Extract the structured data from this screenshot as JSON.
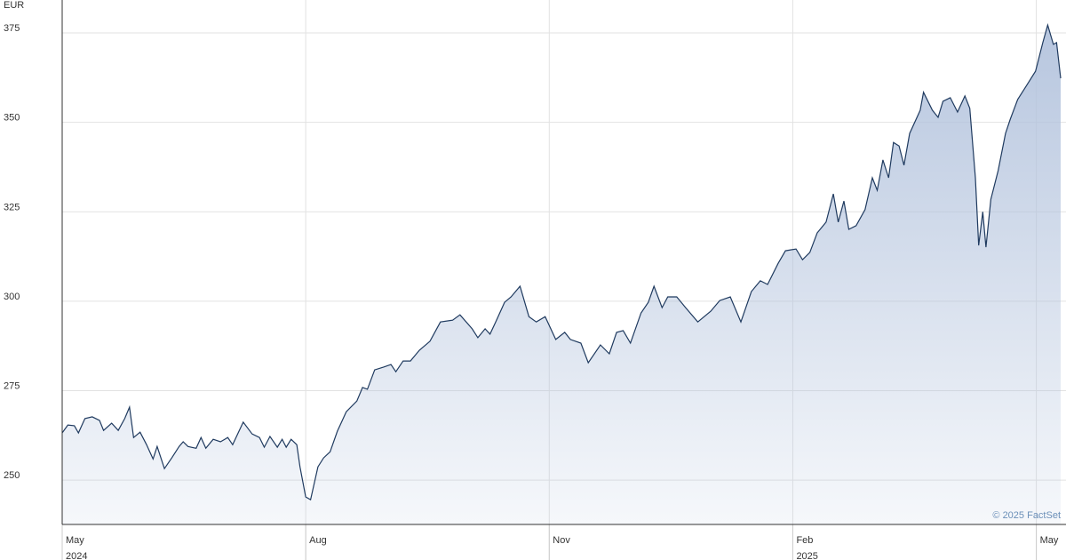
{
  "chart_data": {
    "type": "area",
    "unit": "EUR",
    "credit": "© 2025 FactSet",
    "color": "#1f3a5f",
    "fill": "#b9c8e0",
    "grid": true,
    "xlim": [
      0,
      12.3
    ],
    "ylim": [
      237.6,
      384.2
    ],
    "yticks": [
      250,
      275,
      300,
      325,
      350,
      375
    ],
    "xticks": [
      {
        "value": 0,
        "label": "May",
        "year": "2024"
      },
      {
        "value": 3,
        "label": "Aug"
      },
      {
        "value": 6,
        "label": "Nov"
      },
      {
        "value": 9,
        "label": "Feb",
        "year": "2025"
      },
      {
        "value": 12,
        "label": "May"
      }
    ],
    "x": [
      0,
      0.07,
      0.15,
      0.2,
      0.28,
      0.37,
      0.46,
      0.51,
      0.61,
      0.69,
      0.77,
      0.83,
      0.88,
      0.96,
      1.04,
      1.12,
      1.17,
      1.26,
      1.35,
      1.44,
      1.49,
      1.55,
      1.65,
      1.71,
      1.77,
      1.86,
      1.95,
      2.04,
      2.1,
      2.23,
      2.34,
      2.43,
      2.49,
      2.56,
      2.65,
      2.71,
      2.76,
      2.82,
      2.89,
      2.93,
      3,
      3.06,
      3.15,
      3.22,
      3.3,
      3.39,
      3.5,
      3.63,
      3.7,
      3.76,
      3.85,
      3.96,
      4.05,
      4.11,
      4.2,
      4.29,
      4.4,
      4.53,
      4.66,
      4.81,
      4.9,
      5.05,
      5.12,
      5.21,
      5.27,
      5.34,
      5.45,
      5.53,
      5.64,
      5.75,
      5.84,
      5.95,
      6.08,
      6.19,
      6.26,
      6.39,
      6.48,
      6.63,
      6.74,
      6.83,
      6.91,
      7,
      7.13,
      7.22,
      7.29,
      7.39,
      7.46,
      7.57,
      7.68,
      7.83,
      7.99,
      8.1,
      8.23,
      8.36,
      8.49,
      8.6,
      8.69,
      8.82,
      8.91,
      9.04,
      9.12,
      9.21,
      9.3,
      9.41,
      9.5,
      9.56,
      9.63,
      9.69,
      9.78,
      9.89,
      9.98,
      10.04,
      10.11,
      10.18,
      10.24,
      10.31,
      10.37,
      10.44,
      10.57,
      10.61,
      10.72,
      10.79,
      10.85,
      10.94,
      11.03,
      11.12,
      11.18,
      11.25,
      11.29,
      11.34,
      11.38,
      11.44,
      11.53,
      11.62,
      11.68,
      11.77,
      11.88,
      11.99,
      12.08,
      12.14,
      12.21,
      12.25,
      12.3
    ],
    "values": [
      263.2,
      265.4,
      265.2,
      263.2,
      267.2,
      267.7,
      266.7,
      263.9,
      265.9,
      263.9,
      267.2,
      270.4,
      261.9,
      263.4,
      259.9,
      255.9,
      259.4,
      253.2,
      256.2,
      259.4,
      260.7,
      259.4,
      258.9,
      261.9,
      258.9,
      261.4,
      260.7,
      261.9,
      259.9,
      266.2,
      262.9,
      261.9,
      259.2,
      262.2,
      259.2,
      261.4,
      259.2,
      261.4,
      259.9,
      253.7,
      245.3,
      244.5,
      253.7,
      256.2,
      257.9,
      263.7,
      269.1,
      272.1,
      275.9,
      275.4,
      280.8,
      281.6,
      282.3,
      280.3,
      283.3,
      283.3,
      286.3,
      288.8,
      294.2,
      294.7,
      296.2,
      292.3,
      289.8,
      292.3,
      290.8,
      294.2,
      299.7,
      301.2,
      304.2,
      295.7,
      294.2,
      295.7,
      289.3,
      291.3,
      289.3,
      288.3,
      282.8,
      287.8,
      285.3,
      291.3,
      291.8,
      288.3,
      296.7,
      299.7,
      304.2,
      298.2,
      301.2,
      301.2,
      298.2,
      294.2,
      297.2,
      300.2,
      301.2,
      294.2,
      302.7,
      305.7,
      304.7,
      310.6,
      314.1,
      314.6,
      311.6,
      313.6,
      319.1,
      322.1,
      330,
      322.1,
      328,
      320.1,
      321.1,
      325.6,
      334.5,
      331,
      339.5,
      334.5,
      344.4,
      343.4,
      338,
      346.9,
      353.4,
      358.4,
      353.4,
      351.4,
      355.9,
      356.9,
      352.9,
      357.4,
      353.9,
      334.5,
      315.6,
      325,
      315.1,
      328.5,
      336.5,
      346.9,
      350.9,
      356.4,
      360.3,
      364.3,
      372.3,
      377.2,
      371.8,
      372.3,
      362.3
    ]
  }
}
